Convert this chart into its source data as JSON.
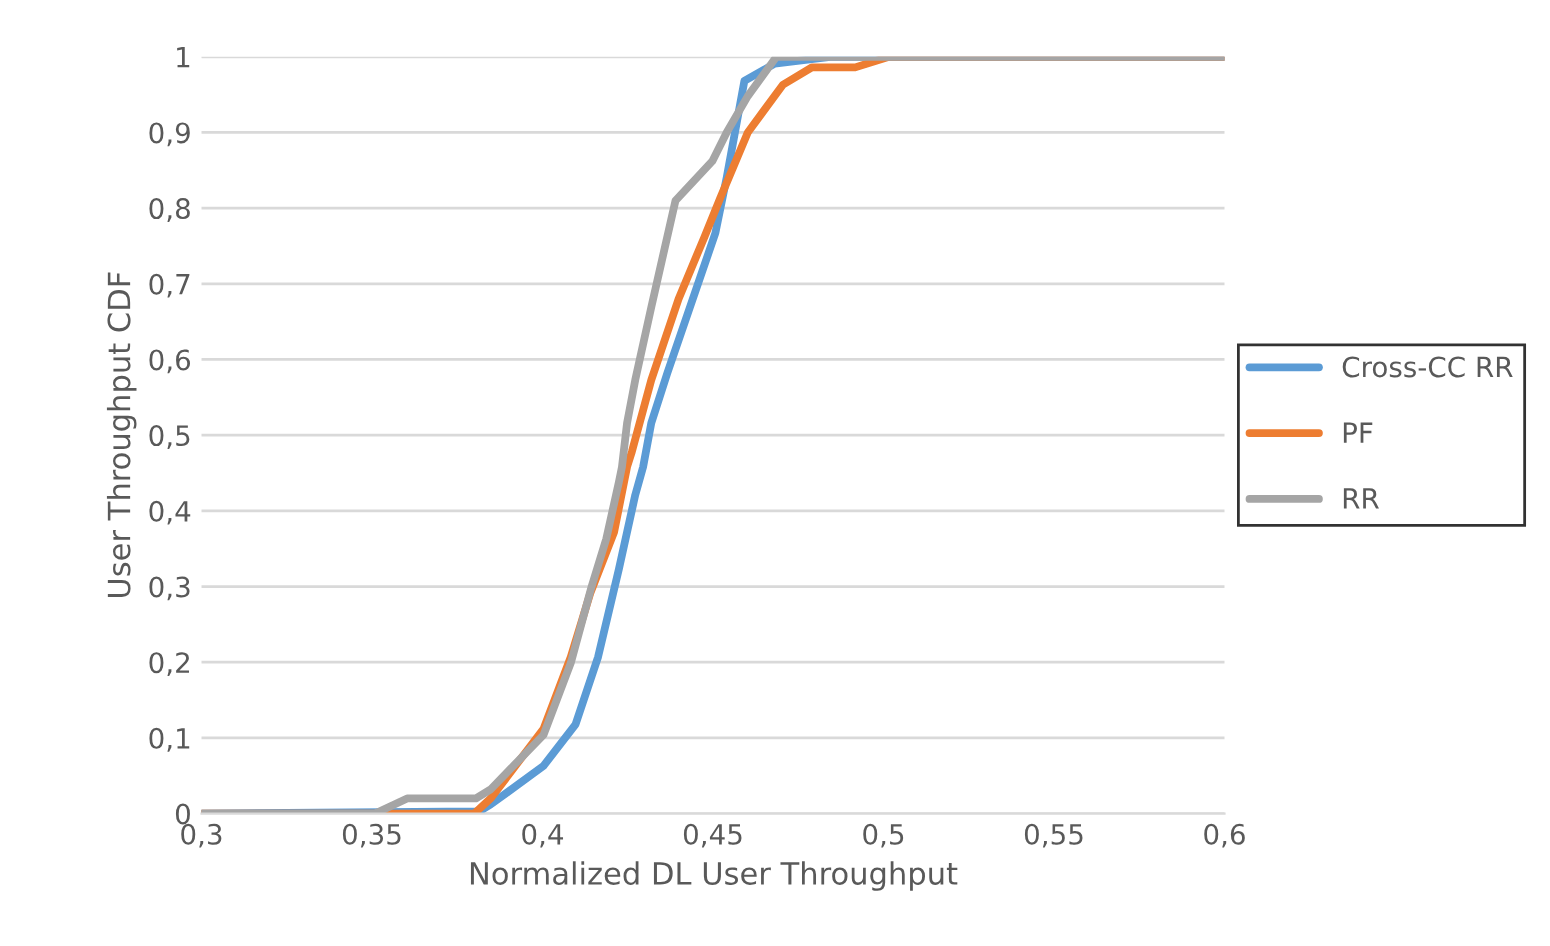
{
  "chart_data": {
    "type": "line",
    "xlabel": "Normalized DL User Throughput",
    "ylabel": "User Throughput CDF",
    "xlim": [
      0.3,
      0.6
    ],
    "ylim": [
      0,
      1
    ],
    "xticks": [
      {
        "value": 0.3,
        "label": "0,3"
      },
      {
        "value": 0.35,
        "label": "0,35"
      },
      {
        "value": 0.4,
        "label": "0,4"
      },
      {
        "value": 0.45,
        "label": "0,45"
      },
      {
        "value": 0.5,
        "label": "0,5"
      },
      {
        "value": 0.55,
        "label": "0,55"
      },
      {
        "value": 0.6,
        "label": "0,6"
      }
    ],
    "yticks": [
      {
        "value": 0,
        "label": "0"
      },
      {
        "value": 0.1,
        "label": "0,1"
      },
      {
        "value": 0.2,
        "label": "0,2"
      },
      {
        "value": 0.3,
        "label": "0,3"
      },
      {
        "value": 0.4,
        "label": "0,4"
      },
      {
        "value": 0.5,
        "label": "0,5"
      },
      {
        "value": 0.6,
        "label": "0,6"
      },
      {
        "value": 0.7,
        "label": "0,7"
      },
      {
        "value": 0.8,
        "label": "0,8"
      },
      {
        "value": 0.9,
        "label": "0,9"
      },
      {
        "value": 1,
        "label": "1"
      }
    ],
    "grid": "y",
    "legend": "right",
    "marker": "none",
    "line_style": "solid",
    "series": [
      {
        "name": "Cross-CC RR",
        "color": "#5b9bd5",
        "x": [
          0.3,
          0.3815,
          0.3848,
          0.4003,
          0.4097,
          0.4163,
          0.4224,
          0.4272,
          0.4295,
          0.4319,
          0.4366,
          0.4507,
          0.454,
          0.4592,
          0.4681,
          0.485,
          0.6
        ],
        "values": [
          0,
          0.003,
          0.012,
          0.063,
          0.118,
          0.207,
          0.323,
          0.421,
          0.458,
          0.516,
          0.582,
          0.767,
          0.84,
          0.968,
          0.991,
          1.0,
          1.0
        ]
      },
      {
        "name": "PF",
        "color": "#ed7d31",
        "x": [
          0.3,
          0.38,
          0.3848,
          0.4003,
          0.4083,
          0.414,
          0.421,
          0.4248,
          0.4262,
          0.4319,
          0.4399,
          0.4474,
          0.4521,
          0.4602,
          0.4705,
          0.479,
          0.4917,
          0.5016,
          0.6
        ],
        "values": [
          0,
          0,
          0.02,
          0.112,
          0.207,
          0.291,
          0.372,
          0.458,
          0.478,
          0.573,
          0.68,
          0.761,
          0.813,
          0.9,
          0.963,
          0.986,
          0.986,
          1.0,
          1.0
        ]
      },
      {
        "name": "RR",
        "color": "#a5a5a5",
        "x": [
          0.3,
          0.3509,
          0.3603,
          0.3805,
          0.3848,
          0.4003,
          0.4083,
          0.4144,
          0.4187,
          0.4224,
          0.4233,
          0.4248,
          0.4272,
          0.4319,
          0.439,
          0.4498,
          0.454,
          0.4602,
          0.4686,
          0.6
        ],
        "values": [
          0,
          0,
          0.02,
          0.02,
          0.032,
          0.104,
          0.199,
          0.3,
          0.363,
          0.438,
          0.458,
          0.516,
          0.573,
          0.669,
          0.81,
          0.862,
          0.9,
          0.948,
          1.0,
          1.0
        ]
      }
    ]
  }
}
